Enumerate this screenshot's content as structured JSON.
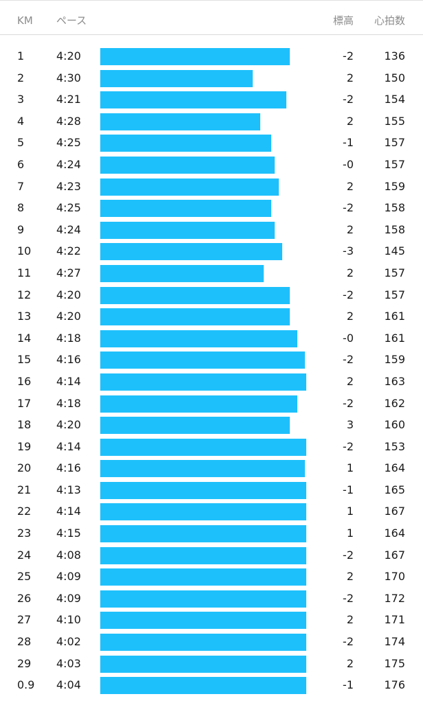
{
  "header": {
    "km_label": "KM",
    "pace_label": "ペース",
    "elevation_label": "標高",
    "heart_rate_label": "心拍数"
  },
  "colors": {
    "bar": "#1ec0fb",
    "header_text": "#8c8c8c",
    "body_text": "#1a1a1a",
    "divider": "#d9d9d9"
  },
  "splits": [
    {
      "km": "1",
      "pace": "4:20",
      "elevation": "-2",
      "heart_rate": "136"
    },
    {
      "km": "2",
      "pace": "4:30",
      "elevation": "2",
      "heart_rate": "150"
    },
    {
      "km": "3",
      "pace": "4:21",
      "elevation": "-2",
      "heart_rate": "154"
    },
    {
      "km": "4",
      "pace": "4:28",
      "elevation": "2",
      "heart_rate": "155"
    },
    {
      "km": "5",
      "pace": "4:25",
      "elevation": "-1",
      "heart_rate": "157"
    },
    {
      "km": "6",
      "pace": "4:24",
      "elevation": "-0",
      "heart_rate": "157"
    },
    {
      "km": "7",
      "pace": "4:23",
      "elevation": "2",
      "heart_rate": "159"
    },
    {
      "km": "8",
      "pace": "4:25",
      "elevation": "-2",
      "heart_rate": "158"
    },
    {
      "km": "9",
      "pace": "4:24",
      "elevation": "2",
      "heart_rate": "158"
    },
    {
      "km": "10",
      "pace": "4:22",
      "elevation": "-3",
      "heart_rate": "145"
    },
    {
      "km": "11",
      "pace": "4:27",
      "elevation": "2",
      "heart_rate": "157"
    },
    {
      "km": "12",
      "pace": "4:20",
      "elevation": "-2",
      "heart_rate": "157"
    },
    {
      "km": "13",
      "pace": "4:20",
      "elevation": "2",
      "heart_rate": "161"
    },
    {
      "km": "14",
      "pace": "4:18",
      "elevation": "-0",
      "heart_rate": "161"
    },
    {
      "km": "15",
      "pace": "4:16",
      "elevation": "-2",
      "heart_rate": "159"
    },
    {
      "km": "16",
      "pace": "4:14",
      "elevation": "2",
      "heart_rate": "163"
    },
    {
      "km": "17",
      "pace": "4:18",
      "elevation": "-2",
      "heart_rate": "162"
    },
    {
      "km": "18",
      "pace": "4:20",
      "elevation": "3",
      "heart_rate": "160"
    },
    {
      "km": "19",
      "pace": "4:14",
      "elevation": "-2",
      "heart_rate": "153"
    },
    {
      "km": "20",
      "pace": "4:16",
      "elevation": "1",
      "heart_rate": "164"
    },
    {
      "km": "21",
      "pace": "4:13",
      "elevation": "-1",
      "heart_rate": "165"
    },
    {
      "km": "22",
      "pace": "4:14",
      "elevation": "1",
      "heart_rate": "167"
    },
    {
      "km": "23",
      "pace": "4:15",
      "elevation": "1",
      "heart_rate": "164"
    },
    {
      "km": "24",
      "pace": "4:08",
      "elevation": "-2",
      "heart_rate": "167"
    },
    {
      "km": "25",
      "pace": "4:09",
      "elevation": "2",
      "heart_rate": "170"
    },
    {
      "km": "26",
      "pace": "4:09",
      "elevation": "-2",
      "heart_rate": "172"
    },
    {
      "km": "27",
      "pace": "4:10",
      "elevation": "2",
      "heart_rate": "171"
    },
    {
      "km": "28",
      "pace": "4:02",
      "elevation": "-2",
      "heart_rate": "174"
    },
    {
      "km": "29",
      "pace": "4:03",
      "elevation": "2",
      "heart_rate": "175"
    },
    {
      "km": "0.9",
      "pace": "4:04",
      "elevation": "-1",
      "heart_rate": "176"
    }
  ]
}
